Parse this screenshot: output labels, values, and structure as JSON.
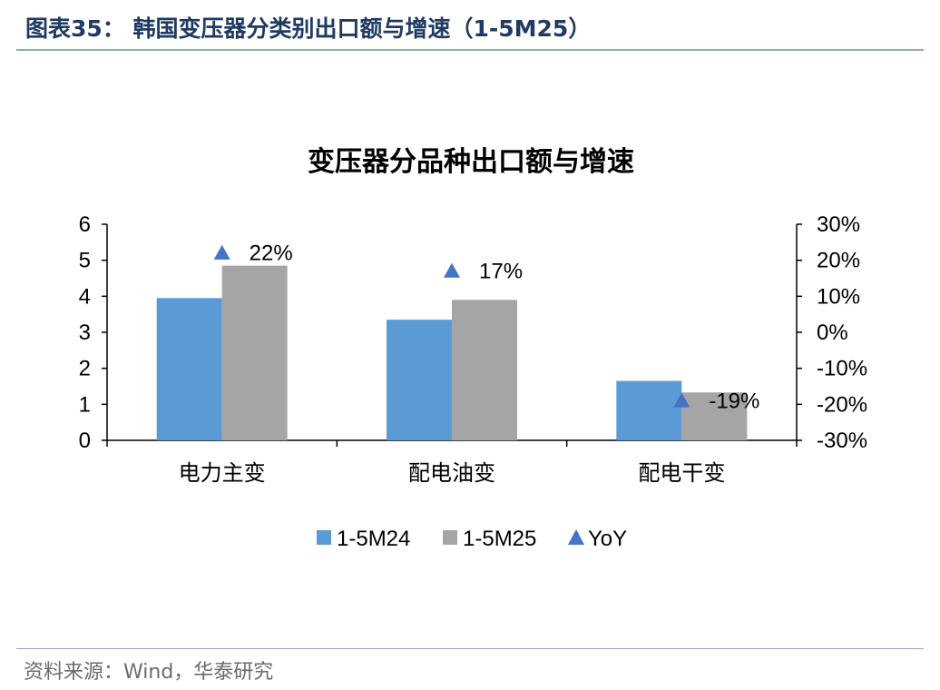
{
  "header": {
    "title": "图表35：  韩国变压器分类别出口额与增速（1-5M25）"
  },
  "footer": {
    "source": "资料来源：Wind，华泰研究"
  },
  "colors": {
    "series_1": "#5b9bd5",
    "series_2": "#a5a5a5",
    "yoy": "#4472c4",
    "header": "#1f3a63",
    "rule": "#8aa7c7"
  },
  "chart_data": {
    "type": "bar",
    "title": "变压器分品种出口额与增速",
    "categories": [
      "电力主变",
      "配电油变",
      "配电干变"
    ],
    "series": [
      {
        "name": "1-5M24",
        "values": [
          3.95,
          3.35,
          1.65
        ]
      },
      {
        "name": "1-5M25",
        "values": [
          4.85,
          3.9,
          1.33
        ]
      }
    ],
    "yoy": {
      "name": "YoY",
      "values": [
        0.22,
        0.17,
        -0.19
      ],
      "labels": [
        "22%",
        "17%",
        "-19%"
      ]
    },
    "ylim": [
      0,
      6
    ],
    "yticks": [
      "0",
      "1",
      "2",
      "3",
      "4",
      "5",
      "6"
    ],
    "y2lim": [
      -0.3,
      0.3
    ],
    "y2ticks": [
      "-30%",
      "-20%",
      "-10%",
      "0%",
      "10%",
      "20%",
      "30%"
    ],
    "legend_position": "bottom",
    "grid": false
  }
}
